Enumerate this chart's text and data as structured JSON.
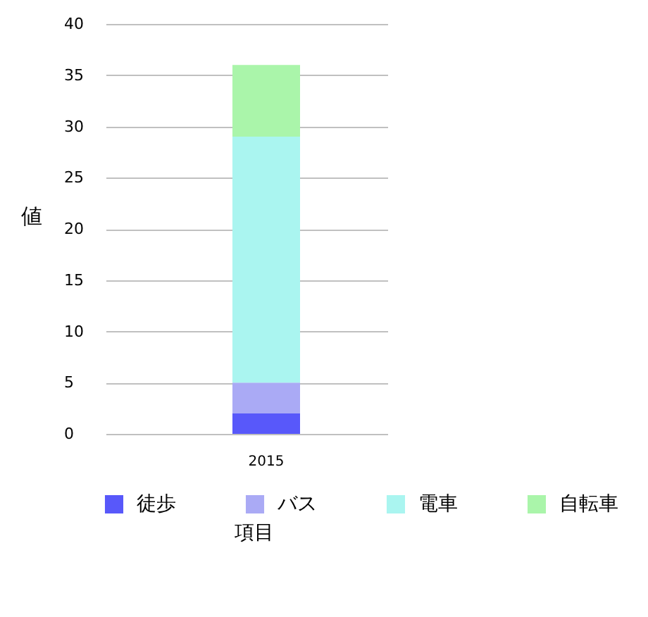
{
  "chart_data": {
    "type": "bar",
    "stacked": true,
    "xlabel": "項目",
    "ylabel": "値",
    "categories": [
      "2015"
    ],
    "series": [
      {
        "name": "徒歩",
        "color": "#5858fa",
        "values": [
          2
        ]
      },
      {
        "name": "バス",
        "color": "#aaaaf5",
        "values": [
          3
        ]
      },
      {
        "name": "電車",
        "color": "#aaf5f0",
        "values": [
          24
        ]
      },
      {
        "name": "自転車",
        "color": "#aaf5aa",
        "values": [
          7
        ]
      }
    ],
    "ylim": [
      0,
      40
    ],
    "yticks": [
      0,
      5,
      10,
      15,
      20,
      25,
      30,
      35,
      40
    ],
    "grid": "y",
    "legend": "bottom"
  }
}
